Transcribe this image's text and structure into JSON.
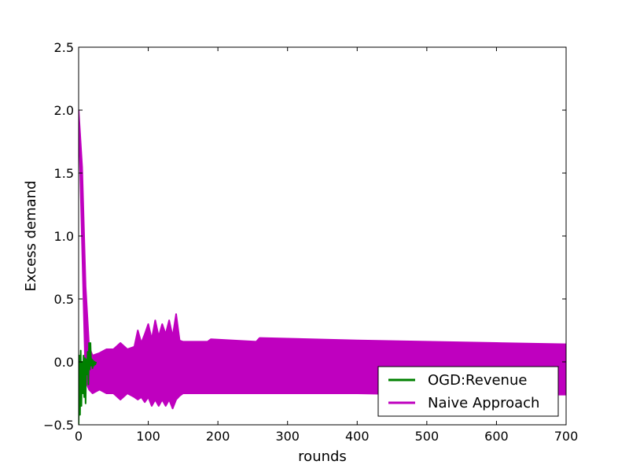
{
  "chart_data": {
    "type": "line",
    "title": "",
    "xlabel": "rounds",
    "ylabel": "Excess demand",
    "xlim": [
      0,
      700
    ],
    "ylim": [
      -0.5,
      2.5
    ],
    "xticks": [
      "0",
      "100",
      "200",
      "300",
      "400",
      "500",
      "600",
      "700"
    ],
    "yticks": [
      "−0.5",
      "0.0",
      "0.5",
      "1.0",
      "1.5",
      "2.0",
      "2.5"
    ],
    "grid": false,
    "legend_position": "lower-right",
    "series": [
      {
        "name": "OGD:Revenue",
        "color": "#008000",
        "x": [
          0,
          1,
          2,
          3,
          4,
          5,
          6,
          7,
          8,
          9,
          10,
          11,
          12,
          13,
          14,
          15,
          16,
          17,
          18,
          19,
          20,
          21,
          22,
          23,
          24,
          25
        ],
        "y": [
          -0.5,
          0.05,
          -0.42,
          0.09,
          -0.35,
          0.0,
          -0.25,
          0.05,
          -0.28,
          0.03,
          -0.33,
          0.02,
          -0.1,
          0.08,
          -0.18,
          0.15,
          -0.06,
          0.15,
          -0.03,
          0.02,
          -0.05,
          0.01,
          -0.03,
          0.0,
          -0.02,
          0.0
        ]
      },
      {
        "name": "Naive Approach",
        "color": "#bf00bf",
        "envelope_upper": {
          "x": [
            0,
            5,
            10,
            15,
            20,
            30,
            40,
            50,
            60,
            70,
            80,
            85,
            90,
            95,
            100,
            105,
            110,
            115,
            120,
            125,
            130,
            135,
            140,
            145,
            150,
            185,
            190,
            255,
            260,
            400,
            500,
            600,
            700
          ],
          "y": [
            2.0,
            1.55,
            0.6,
            0.12,
            0.05,
            0.07,
            0.1,
            0.1,
            0.15,
            0.1,
            0.12,
            0.25,
            0.15,
            0.22,
            0.3,
            0.18,
            0.33,
            0.2,
            0.3,
            0.22,
            0.33,
            0.2,
            0.38,
            0.17,
            0.16,
            0.16,
            0.18,
            0.16,
            0.19,
            0.17,
            0.16,
            0.15,
            0.14
          ]
        },
        "envelope_lower": {
          "x": [
            0,
            10,
            15,
            20,
            30,
            40,
            50,
            60,
            70,
            80,
            85,
            90,
            95,
            100,
            105,
            110,
            115,
            120,
            125,
            130,
            135,
            140,
            145,
            150,
            200,
            255,
            300,
            400,
            500,
            600,
            700
          ],
          "y": [
            2.0,
            -0.15,
            -0.22,
            -0.25,
            -0.22,
            -0.25,
            -0.25,
            -0.3,
            -0.25,
            -0.28,
            -0.3,
            -0.28,
            -0.32,
            -0.28,
            -0.35,
            -0.3,
            -0.35,
            -0.3,
            -0.35,
            -0.3,
            -0.37,
            -0.3,
            -0.27,
            -0.25,
            -0.25,
            -0.25,
            -0.25,
            -0.25,
            -0.26,
            -0.26,
            -0.26
          ]
        }
      }
    ]
  }
}
